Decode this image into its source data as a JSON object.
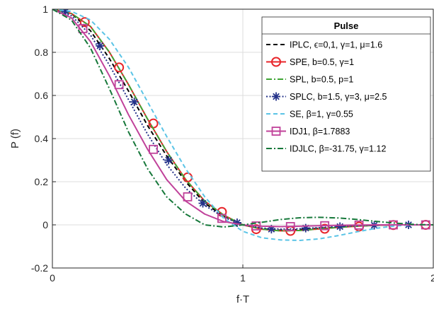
{
  "chart_data": {
    "type": "line",
    "title": "",
    "xlabel": "f·T",
    "ylabel": "P (f)",
    "xlim": [
      0,
      2
    ],
    "ylim": [
      -0.2,
      1
    ],
    "xticks": [
      "0",
      "1",
      "2"
    ],
    "yticks": [
      "-0.2",
      "0",
      "0.2",
      "0.4",
      "0.6",
      "0.8",
      "1"
    ],
    "grid": true,
    "legend_title": "Pulse",
    "legend_position": "top-right",
    "series": [
      {
        "name": "IPLC, ϵ=0,1, γ=1, μ=1.6",
        "color": "#000000",
        "dash": "dashed",
        "marker": "none",
        "x": [
          0,
          0.1,
          0.2,
          0.3,
          0.4,
          0.5,
          0.6,
          0.7,
          0.8,
          0.9,
          1.0,
          1.1,
          1.2,
          1.3,
          1.4,
          1.5,
          1.6,
          1.7,
          1.8,
          1.9,
          2.0
        ],
        "y": [
          1.0,
          0.98,
          0.9,
          0.77,
          0.62,
          0.46,
          0.32,
          0.2,
          0.1,
          0.04,
          0.0,
          -0.018,
          -0.025,
          -0.022,
          -0.016,
          -0.01,
          -0.005,
          -0.002,
          0.0,
          0.0,
          0.0
        ]
      },
      {
        "name": "SPE, b=0.5, γ=1",
        "color": "#e8262b",
        "dash": "solid",
        "marker": "circle",
        "x": [
          0,
          0.1,
          0.2,
          0.3,
          0.4,
          0.5,
          0.6,
          0.7,
          0.8,
          0.9,
          1.0,
          1.1,
          1.2,
          1.3,
          1.4,
          1.5,
          1.6,
          1.7,
          1.8,
          1.9,
          2.0
        ],
        "y": [
          1.0,
          0.98,
          0.92,
          0.8,
          0.65,
          0.49,
          0.34,
          0.21,
          0.11,
          0.045,
          0.0,
          -0.02,
          -0.028,
          -0.026,
          -0.019,
          -0.012,
          -0.006,
          -0.002,
          0.0,
          0.0,
          0.0
        ],
        "marker_x": [
          0.17,
          0.35,
          0.53,
          0.71,
          0.89,
          1.07,
          1.25,
          1.43,
          1.61,
          1.79,
          1.96
        ],
        "marker_y": [
          0.94,
          0.73,
          0.47,
          0.22,
          0.06,
          -0.02,
          -0.028,
          -0.018,
          -0.008,
          -0.001,
          0.0
        ]
      },
      {
        "name": "SPL, b=0.5, p=1",
        "color": "#3fa535",
        "dash": "dashdot",
        "marker": "none",
        "x": [
          0,
          0.1,
          0.2,
          0.3,
          0.4,
          0.5,
          0.6,
          0.7,
          0.8,
          0.9,
          1.0,
          1.1,
          1.2,
          1.3,
          1.4,
          1.5,
          1.6,
          1.7,
          1.8,
          1.9,
          2.0
        ],
        "y": [
          1.0,
          0.98,
          0.92,
          0.8,
          0.65,
          0.49,
          0.34,
          0.21,
          0.11,
          0.045,
          0.0,
          -0.02,
          -0.028,
          -0.026,
          -0.019,
          -0.012,
          -0.006,
          -0.002,
          0.0,
          0.0,
          0.0
        ]
      },
      {
        "name": "SPLC, b=1.5, γ=3, μ=2.5",
        "color": "#25338a",
        "dash": "dotted",
        "marker": "asterisk",
        "x": [
          0,
          0.1,
          0.2,
          0.3,
          0.4,
          0.5,
          0.6,
          0.7,
          0.8,
          0.9,
          1.0,
          1.1,
          1.2,
          1.3,
          1.4,
          1.5,
          1.6,
          1.7,
          1.8,
          1.9,
          2.0
        ],
        "y": [
          1.0,
          0.97,
          0.88,
          0.74,
          0.58,
          0.42,
          0.28,
          0.17,
          0.09,
          0.035,
          0.0,
          -0.015,
          -0.02,
          -0.018,
          -0.013,
          -0.008,
          -0.004,
          -0.001,
          0.0,
          0.0,
          0.0
        ],
        "marker_x": [
          0.07,
          0.25,
          0.43,
          0.61,
          0.79,
          0.97,
          1.15,
          1.33,
          1.51,
          1.69,
          1.87
        ],
        "marker_y": [
          0.99,
          0.83,
          0.57,
          0.3,
          0.1,
          0.01,
          -0.02,
          -0.015,
          -0.008,
          -0.002,
          0.0
        ]
      },
      {
        "name": "SE, β=1, γ=0.55",
        "color": "#5bc4e6",
        "dash": "dashed",
        "marker": "none",
        "x": [
          0,
          0.1,
          0.2,
          0.3,
          0.4,
          0.5,
          0.6,
          0.7,
          0.8,
          0.9,
          1.0,
          1.1,
          1.2,
          1.3,
          1.4,
          1.5,
          1.6,
          1.7,
          1.8,
          1.9,
          2.0
        ],
        "y": [
          1.0,
          0.99,
          0.95,
          0.86,
          0.73,
          0.57,
          0.41,
          0.26,
          0.13,
          0.03,
          -0.03,
          -0.06,
          -0.07,
          -0.072,
          -0.065,
          -0.05,
          -0.032,
          -0.016,
          -0.005,
          0.0,
          0.0
        ]
      },
      {
        "name": "IDJ1, β=1.7883",
        "color": "#c0429a",
        "dash": "solid",
        "marker": "square",
        "x": [
          0,
          0.1,
          0.2,
          0.3,
          0.4,
          0.5,
          0.6,
          0.7,
          0.8,
          0.9,
          1.0,
          1.1,
          1.2,
          1.3,
          1.4,
          1.5,
          1.6,
          1.7,
          1.8,
          1.9,
          2.0
        ],
        "y": [
          1.0,
          0.96,
          0.85,
          0.69,
          0.51,
          0.35,
          0.21,
          0.11,
          0.05,
          0.015,
          0.0,
          -0.006,
          -0.008,
          -0.006,
          -0.004,
          -0.002,
          -0.001,
          0.0,
          0.0,
          0.0,
          0.0
        ],
        "marker_x": [
          0.16,
          0.35,
          0.53,
          0.71,
          0.89,
          1.07,
          1.25,
          1.43,
          1.61,
          1.79,
          1.96
        ],
        "marker_y": [
          0.91,
          0.65,
          0.35,
          0.13,
          0.03,
          -0.005,
          -0.008,
          -0.004,
          -0.001,
          0.0,
          0.0
        ]
      },
      {
        "name": "IDJLC, β=-31.75, γ=1.12",
        "color": "#16783a",
        "dash": "dashdot",
        "marker": "none",
        "x": [
          0,
          0.1,
          0.2,
          0.3,
          0.4,
          0.5,
          0.6,
          0.7,
          0.8,
          0.9,
          1.0,
          1.1,
          1.2,
          1.3,
          1.4,
          1.5,
          1.6,
          1.7,
          1.8,
          1.9,
          2.0
        ],
        "y": [
          1.0,
          0.95,
          0.82,
          0.63,
          0.43,
          0.26,
          0.13,
          0.05,
          0.0,
          -0.01,
          0.0,
          0.012,
          0.025,
          0.033,
          0.035,
          0.032,
          0.025,
          0.016,
          0.008,
          0.002,
          0.0
        ]
      }
    ]
  }
}
